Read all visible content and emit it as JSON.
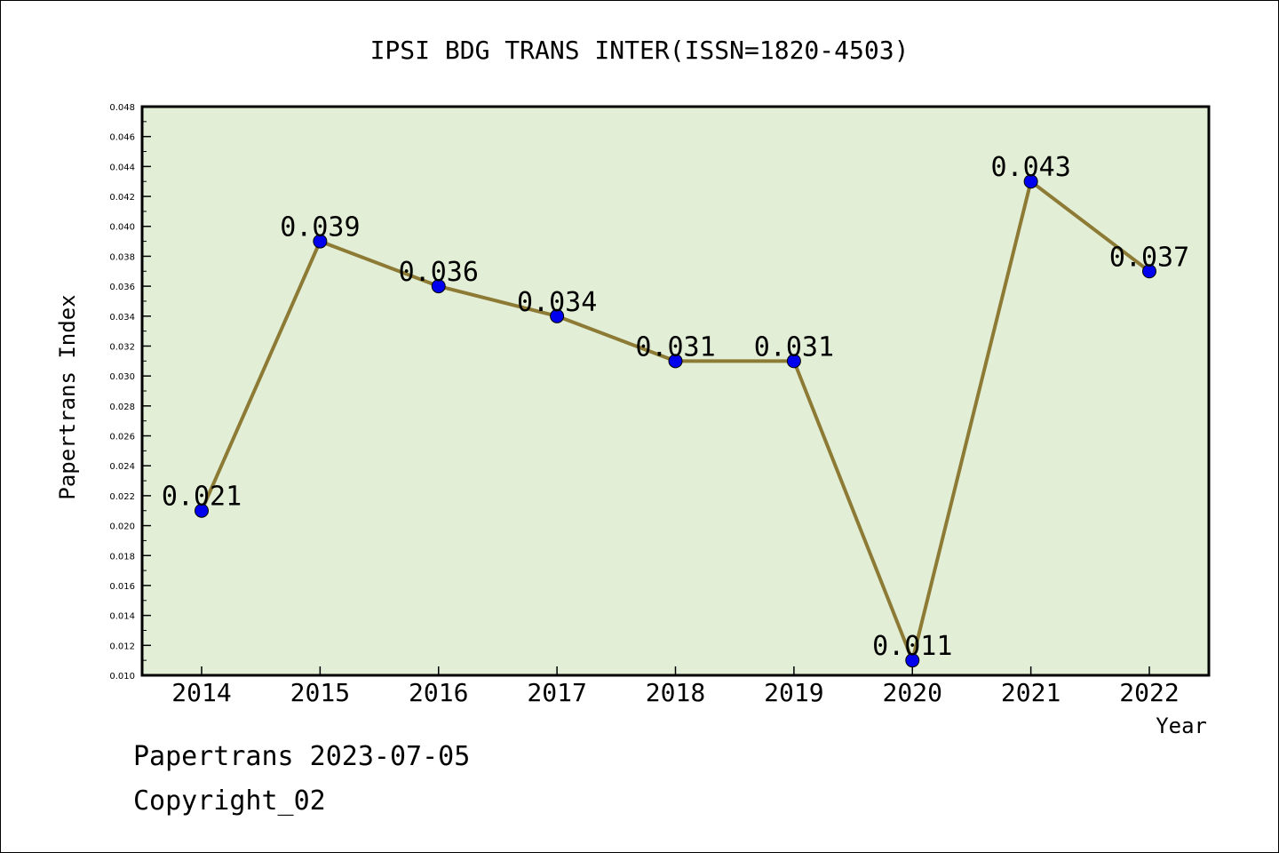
{
  "footer": {
    "line1": "Papertrans 2023-07-05",
    "line2": "Copyright_02"
  },
  "colors": {
    "plot_bg": "#e2efd6",
    "line": "#8c7a35",
    "marker": "#0000ee",
    "axis": "#000000"
  },
  "chart_data": {
    "type": "line",
    "title": "IPSI BDG TRANS INTER(ISSN=1820-4503)",
    "xlabel": "Year",
    "ylabel": "Papertrans Index",
    "categories": [
      "2014",
      "2015",
      "2016",
      "2017",
      "2018",
      "2019",
      "2020",
      "2021",
      "2022"
    ],
    "series": [
      {
        "values": [
          0.021,
          0.039,
          0.036,
          0.034,
          0.031,
          0.031,
          0.011,
          0.043,
          0.037
        ]
      }
    ],
    "data_labels": [
      "0.021",
      "0.039",
      "0.036",
      "0.034",
      "0.031",
      "0.031",
      "0.011",
      "0.043",
      "0.037"
    ],
    "ylim": [
      0.01,
      0.048
    ],
    "y_ticks": [
      "0.010",
      "0.012",
      "0.014",
      "0.016",
      "0.018",
      "0.020",
      "0.022",
      "0.024",
      "0.026",
      "0.028",
      "0.030",
      "0.032",
      "0.034",
      "0.036",
      "0.038",
      "0.040",
      "0.042",
      "0.044",
      "0.046",
      "0.048"
    ],
    "grid": false,
    "legend": "none"
  }
}
